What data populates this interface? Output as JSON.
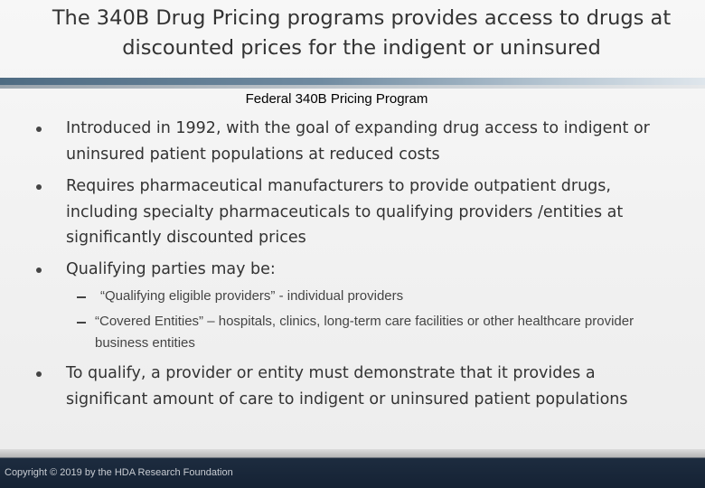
{
  "title": "The 340B Drug Pricing programs provides access to drugs at discounted prices for the indigent or uninsured",
  "subtitle": "Federal 340B Pricing Program",
  "bullets": [
    {
      "text": "Introduced in 1992, with the goal of expanding drug access to indigent or uninsured patient populations at reduced costs"
    },
    {
      "text": "Requires pharmaceutical manufacturers to provide outpatient drugs, including specialty pharmaceuticals to qualifying providers /entities at significantly discounted prices"
    },
    {
      "text": "Qualifying parties may be:",
      "subitems": [
        "“Qualifying eligible providers”  - individual providers",
        "“Covered Entities” – hospitals, clinics, long-term care facilities or other healthcare provider business entities"
      ]
    },
    {
      "text": "To qualify, a provider or entity must demonstrate that it provides a significant amount of care to indigent or uninsured patient populations"
    }
  ],
  "footer": "Copyright © 2019 by the HDA Research Foundation"
}
